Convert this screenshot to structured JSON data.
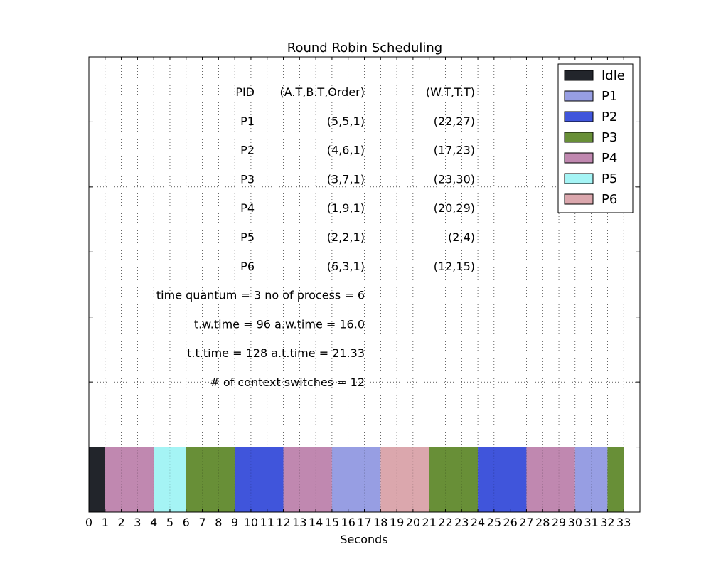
{
  "chart_data": {
    "type": "bar",
    "title": "Round Robin Scheduling",
    "xlabel": "Seconds",
    "ylabel": "",
    "xlim": [
      0,
      34
    ],
    "x_ticks": [
      0,
      1,
      2,
      3,
      4,
      5,
      6,
      7,
      8,
      9,
      10,
      11,
      12,
      13,
      14,
      15,
      16,
      17,
      18,
      19,
      20,
      21,
      22,
      23,
      24,
      25,
      26,
      27,
      28,
      29,
      30,
      31,
      32,
      33
    ],
    "grid": true,
    "legend_position": "top-right",
    "legend": [
      {
        "name": "Idle",
        "color": "#22252b"
      },
      {
        "name": "P1",
        "color": "#979ee3"
      },
      {
        "name": "P2",
        "color": "#4055db"
      },
      {
        "name": "P3",
        "color": "#688f37"
      },
      {
        "name": "P4",
        "color": "#c088b0"
      },
      {
        "name": "P5",
        "color": "#a5f4f5"
      },
      {
        "name": "P6",
        "color": "#dba7ad"
      }
    ],
    "segments": [
      {
        "process": "Idle",
        "start": 0,
        "end": 1
      },
      {
        "process": "P4",
        "start": 1,
        "end": 4
      },
      {
        "process": "P5",
        "start": 4,
        "end": 6
      },
      {
        "process": "P3",
        "start": 6,
        "end": 9
      },
      {
        "process": "P2",
        "start": 9,
        "end": 12
      },
      {
        "process": "P4",
        "start": 12,
        "end": 15
      },
      {
        "process": "P1",
        "start": 15,
        "end": 18
      },
      {
        "process": "P6",
        "start": 18,
        "end": 21
      },
      {
        "process": "P3",
        "start": 21,
        "end": 24
      },
      {
        "process": "P2",
        "start": 24,
        "end": 27
      },
      {
        "process": "P4",
        "start": 27,
        "end": 30
      },
      {
        "process": "P1",
        "start": 30,
        "end": 32
      },
      {
        "process": "P3",
        "start": 32,
        "end": 33
      }
    ],
    "table": {
      "headers": [
        "PID",
        "(A.T,B.T,Order)",
        "(W.T,T.T)"
      ],
      "rows": [
        [
          "P1",
          "(5,5,1)",
          "(22,27)"
        ],
        [
          "P2",
          "(4,6,1)",
          "(17,23)"
        ],
        [
          "P3",
          "(3,7,1)",
          "(23,30)"
        ],
        [
          "P4",
          "(1,9,1)",
          "(20,29)"
        ],
        [
          "P5",
          "(2,2,1)",
          "(2,4)"
        ],
        [
          "P6",
          "(6,3,1)",
          "(12,15)"
        ]
      ]
    },
    "stats": [
      "time quantum = 3 no of process = 6",
      "t.w.time = 96 a.w.time = 16.0",
      "t.t.time = 128 a.t.time = 21.33",
      "# of context switches = 12"
    ]
  }
}
